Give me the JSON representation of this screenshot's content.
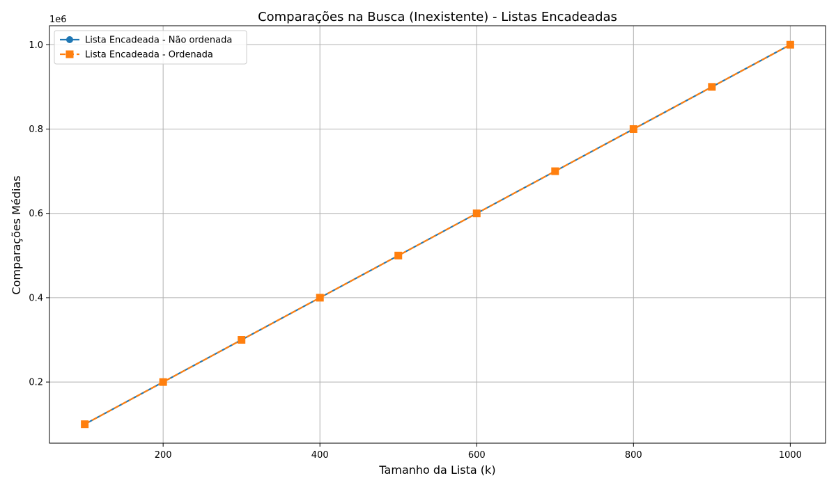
{
  "chart_data": {
    "type": "line",
    "title": "Comparações na Busca (Inexistente) - Listas Encadeadas",
    "xlabel": "Tamanho da Lista (k)",
    "ylabel": "Comparações Médias",
    "y_offset_label": "1e6",
    "x": [
      100,
      200,
      300,
      400,
      500,
      600,
      700,
      800,
      900,
      1000
    ],
    "xlim": [
      55,
      1045
    ],
    "ylim": [
      0.055,
      1.045
    ],
    "x_ticks": [
      200,
      400,
      600,
      800,
      1000
    ],
    "x_tick_labels": [
      "200",
      "400",
      "600",
      "800",
      "1000"
    ],
    "y_ticks": [
      0.2,
      0.4,
      0.6,
      0.8,
      1.0
    ],
    "y_tick_labels": [
      "0.2",
      "0.4",
      "0.6",
      "0.8",
      "1.0"
    ],
    "grid": true,
    "legend_position": "top-left",
    "series": [
      {
        "name": "Lista Encadeada - Não ordenada",
        "values": [
          0.1,
          0.2,
          0.3,
          0.4,
          0.5,
          0.6,
          0.7,
          0.8,
          0.9,
          1.0
        ],
        "color": "#1f77b4",
        "marker": "circle",
        "line_style": "solid"
      },
      {
        "name": "Lista Encadeada - Ordenada",
        "values": [
          0.1,
          0.2,
          0.3,
          0.4,
          0.5,
          0.6,
          0.7,
          0.8,
          0.9,
          1.0
        ],
        "color": "#ff7f0e",
        "marker": "square",
        "line_style": "dashed"
      }
    ]
  }
}
